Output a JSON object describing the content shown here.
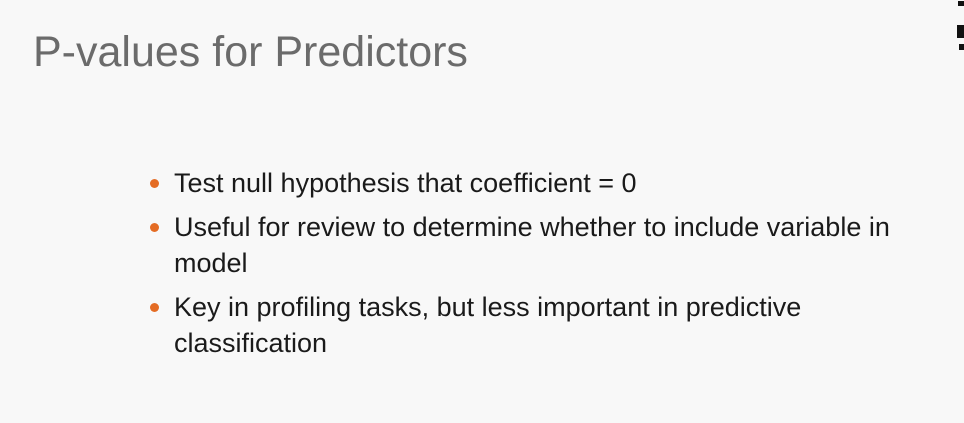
{
  "slide": {
    "title": "P-values for Predictors",
    "bullets": [
      "Test null hypothesis that coefficient = 0",
      "Useful for review to determine whether to include variable in model",
      "Key in profiling tasks, but less important in predictive classification"
    ],
    "colors": {
      "title": "#6b6b6b",
      "text": "#1a1a1a",
      "bullet": "#e46c24",
      "background": "#f8f8f8"
    }
  }
}
